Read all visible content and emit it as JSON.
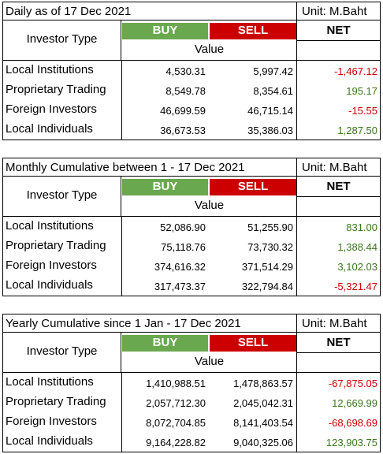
{
  "labels": {
    "investor_type": "Investor Type",
    "buy": "BUY",
    "sell": "SELL",
    "net": "NET",
    "value": "Value",
    "unit": "Unit: M.Baht"
  },
  "colors": {
    "buy_header": "#6aa84f",
    "sell_header": "#cc0000",
    "negative": "#cc0000",
    "positive": "#38761d"
  },
  "tables": [
    {
      "title": "Daily as of 17 Dec 2021",
      "rows": [
        {
          "name": "Local Institutions",
          "buy": "4,530.31",
          "sell": "5,997.42",
          "net": "-1,467.12"
        },
        {
          "name": "Proprietary Trading",
          "buy": "8,549.78",
          "sell": "8,354.61",
          "net": "195.17"
        },
        {
          "name": "Foreign Investors",
          "buy": "46,699.59",
          "sell": "46,715.14",
          "net": "-15.55"
        },
        {
          "name": "Local Individuals",
          "buy": "36,673.53",
          "sell": "35,386.03",
          "net": "1,287.50"
        }
      ]
    },
    {
      "title": "Monthly Cumulative between 1 - 17 Dec 2021",
      "rows": [
        {
          "name": "Local Institutions",
          "buy": "52,086.90",
          "sell": "51,255.90",
          "net": "831.00"
        },
        {
          "name": "Proprietary Trading",
          "buy": "75,118.76",
          "sell": "73,730.32",
          "net": "1,388.44"
        },
        {
          "name": "Foreign Investors",
          "buy": "374,616.32",
          "sell": "371,514.29",
          "net": "3,102.03"
        },
        {
          "name": "Local Individuals",
          "buy": "317,473.37",
          "sell": "322,794.84",
          "net": "-5,321.47"
        }
      ]
    },
    {
      "title": "Yearly Cumulative since 1 Jan - 17 Dec 2021",
      "rows": [
        {
          "name": "Local Institutions",
          "buy": "1,410,988.51",
          "sell": "1,478,863.57",
          "net": "-67,875.05"
        },
        {
          "name": "Proprietary Trading",
          "buy": "2,057,712.30",
          "sell": "2,045,042.31",
          "net": "12,669.99"
        },
        {
          "name": "Foreign Investors",
          "buy": "8,072,704.85",
          "sell": "8,141,403.54",
          "net": "-68,698.69"
        },
        {
          "name": "Local Individuals",
          "buy": "9,164,228.82",
          "sell": "9,040,325.06",
          "net": "123,903.75"
        }
      ]
    }
  ]
}
